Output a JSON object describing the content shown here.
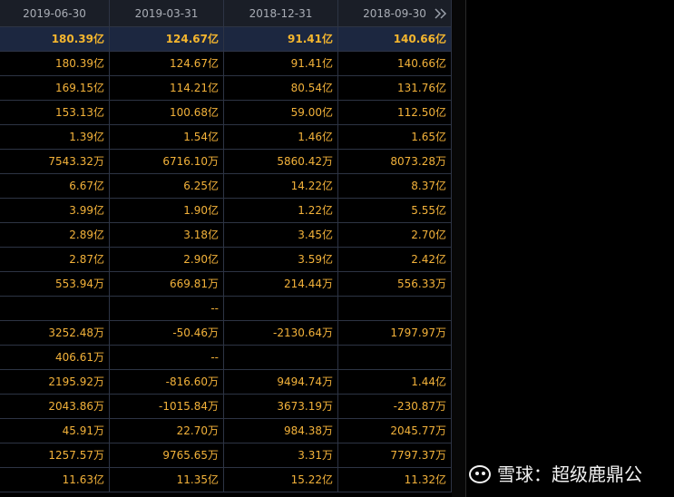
{
  "table": {
    "header": [
      "2019-06-30",
      "2019-03-31",
      "2018-12-31",
      "2018-09-30"
    ],
    "rows": [
      [
        "180.39亿",
        "124.67亿",
        "91.41亿",
        "140.66亿"
      ],
      [
        "180.39亿",
        "124.67亿",
        "91.41亿",
        "140.66亿"
      ],
      [
        "169.15亿",
        "114.21亿",
        "80.54亿",
        "131.76亿"
      ],
      [
        "153.13亿",
        "100.68亿",
        "59.00亿",
        "112.50亿"
      ],
      [
        "1.39亿",
        "1.54亿",
        "1.46亿",
        "1.65亿"
      ],
      [
        "7543.32万",
        "6716.10万",
        "5860.42万",
        "8073.28万"
      ],
      [
        "6.67亿",
        "6.25亿",
        "14.22亿",
        "8.37亿"
      ],
      [
        "3.99亿",
        "1.90亿",
        "1.22亿",
        "5.55亿"
      ],
      [
        "2.89亿",
        "3.18亿",
        "3.45亿",
        "2.70亿"
      ],
      [
        "2.87亿",
        "2.90亿",
        "3.59亿",
        "2.42亿"
      ],
      [
        "553.94万",
        "669.81万",
        "214.44万",
        "556.33万"
      ],
      [
        null,
        "--",
        null,
        null
      ],
      [
        "3252.48万",
        "-50.46万",
        "-2130.64万",
        "1797.97万"
      ],
      [
        "406.61万",
        "--",
        null,
        null
      ],
      [
        "2195.92万",
        "-816.60万",
        "9494.74万",
        "1.44亿"
      ],
      [
        "2043.86万",
        "-1015.84万",
        "3673.19万",
        "-230.87万"
      ],
      [
        "45.91万",
        "22.70万",
        "984.38万",
        "2045.77万"
      ],
      [
        "1257.57万",
        "9765.65万",
        "3.31万",
        "7797.37万"
      ],
      [
        "11.63亿",
        "11.35亿",
        "15.22亿",
        "11.32亿"
      ]
    ]
  },
  "watermark": "雪球：超级鹿鼎公"
}
